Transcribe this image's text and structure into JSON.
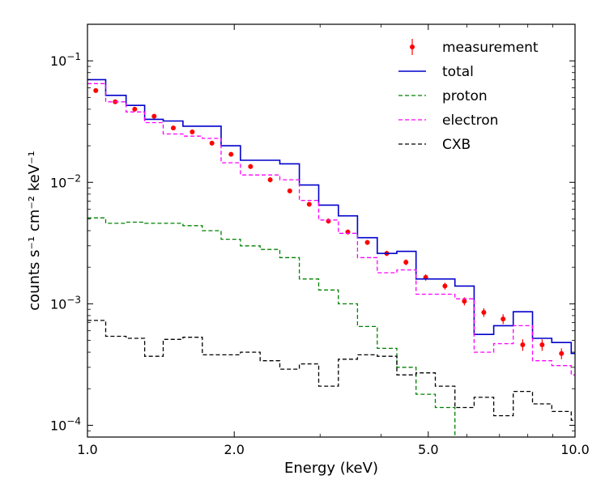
{
  "chart_data": {
    "type": "line",
    "xlabel": "Energy (keV)",
    "ylabel": "counts s⁻¹ cm⁻² keV⁻¹",
    "xscale": "log",
    "yscale": "log",
    "xlim": [
      1.0,
      10.0
    ],
    "ylim": [
      8e-05,
      0.2
    ],
    "x_ticks": [
      {
        "value": 1.0,
        "label": "1.0"
      },
      {
        "value": 2.0,
        "label": "2.0"
      },
      {
        "value": 5.0,
        "label": "5.0"
      },
      {
        "value": 10.0,
        "label": "10.0"
      }
    ],
    "y_ticks": [
      {
        "value": 0.1,
        "base": "10",
        "exp": "−1"
      },
      {
        "value": 0.01,
        "base": "10",
        "exp": "−2"
      },
      {
        "value": 0.001,
        "base": "10",
        "exp": "−3"
      },
      {
        "value": 0.0001,
        "base": "10",
        "exp": "−4"
      }
    ],
    "legend_position": "top-right",
    "series": [
      {
        "name": "measurement",
        "style": "errorbar",
        "color": "#ff0000",
        "x": [
          1.04,
          1.14,
          1.25,
          1.37,
          1.5,
          1.64,
          1.8,
          1.97,
          2.16,
          2.37,
          2.6,
          2.85,
          3.12,
          3.42,
          3.75,
          4.11,
          4.5,
          4.94,
          5.41,
          5.93,
          6.5,
          7.12,
          7.81,
          8.56,
          9.38
        ],
        "y": [
          0.057,
          0.046,
          0.04,
          0.035,
          0.028,
          0.026,
          0.021,
          0.017,
          0.0135,
          0.0105,
          0.0085,
          0.0066,
          0.0048,
          0.0039,
          0.0032,
          0.0026,
          0.0022,
          0.00165,
          0.0014,
          0.00105,
          0.00085,
          0.00075,
          0.00046,
          0.00046,
          0.00039
        ],
        "yerr": [
          0.0025,
          0.002,
          0.0018,
          0.0015,
          0.0012,
          0.0011,
          0.0009,
          0.0007,
          0.0006,
          0.0005,
          0.0004,
          0.0003,
          0.00022,
          0.00018,
          0.00015,
          0.00013,
          0.00012,
          0.0001,
          9e-05,
          8e-05,
          7e-05,
          7e-05,
          5e-05,
          5e-05,
          4e-05
        ]
      },
      {
        "name": "total",
        "style": "steps-solid",
        "color": "#0000cc",
        "edges": [
          1.0,
          1.09,
          1.2,
          1.31,
          1.43,
          1.57,
          1.72,
          1.88,
          2.06,
          2.26,
          2.48,
          2.72,
          2.98,
          3.27,
          3.58,
          3.93,
          4.31,
          4.72,
          5.17,
          5.67,
          6.21,
          6.81,
          7.47,
          8.18,
          8.96,
          9.82,
          10.0
        ],
        "values": [
          0.07,
          0.052,
          0.043,
          0.033,
          0.032,
          0.029,
          0.029,
          0.02,
          0.0152,
          0.0152,
          0.0142,
          0.0095,
          0.0065,
          0.0053,
          0.0035,
          0.0026,
          0.0027,
          0.0016,
          0.0016,
          0.0014,
          0.00056,
          0.00066,
          0.00086,
          0.00052,
          0.00048,
          0.00039
        ]
      },
      {
        "name": "proton",
        "style": "steps-dashed",
        "color": "#008000",
        "edges": [
          1.0,
          1.09,
          1.2,
          1.31,
          1.43,
          1.57,
          1.72,
          1.88,
          2.06,
          2.26,
          2.48,
          2.72,
          2.98,
          3.27,
          3.58,
          3.93,
          4.31,
          4.72,
          5.17,
          5.67
        ],
        "values": [
          0.0051,
          0.0046,
          0.0047,
          0.0046,
          0.0046,
          0.0044,
          0.004,
          0.0034,
          0.003,
          0.0028,
          0.0024,
          0.0016,
          0.0013,
          0.001,
          0.00065,
          0.00043,
          0.0003,
          0.00018,
          0.00014,
          8e-05
        ]
      },
      {
        "name": "electron",
        "style": "steps-dashed",
        "color": "#ff00ff",
        "edges": [
          1.0,
          1.09,
          1.2,
          1.31,
          1.43,
          1.57,
          1.72,
          1.88,
          2.06,
          2.26,
          2.48,
          2.72,
          2.98,
          3.27,
          3.58,
          3.93,
          4.31,
          4.72,
          5.17,
          5.67,
          6.21,
          6.81,
          7.47,
          8.18,
          8.96,
          9.82,
          10.0
        ],
        "values": [
          0.065,
          0.046,
          0.038,
          0.031,
          0.025,
          0.024,
          0.023,
          0.0145,
          0.0115,
          0.0115,
          0.0105,
          0.0071,
          0.0049,
          0.0038,
          0.0024,
          0.0018,
          0.0019,
          0.0012,
          0.0012,
          0.0011,
          0.0004,
          0.00047,
          0.00066,
          0.00034,
          0.00031,
          0.00026
        ]
      },
      {
        "name": "CXB",
        "style": "steps-dashed",
        "color": "#000000",
        "edges": [
          1.0,
          1.09,
          1.2,
          1.31,
          1.43,
          1.57,
          1.72,
          1.88,
          2.06,
          2.26,
          2.48,
          2.72,
          2.98,
          3.27,
          3.58,
          3.93,
          4.31,
          4.72,
          5.17,
          5.67,
          6.21,
          6.81,
          7.47,
          8.18,
          8.96,
          9.82,
          10.0
        ],
        "values": [
          0.00073,
          0.00054,
          0.00052,
          0.00037,
          0.00051,
          0.00053,
          0.00038,
          0.00038,
          0.0004,
          0.00034,
          0.00029,
          0.00032,
          0.00021,
          0.00035,
          0.00038,
          0.00037,
          0.00026,
          0.00027,
          0.00021,
          0.00014,
          0.00017,
          0.00012,
          0.00019,
          0.00015,
          0.00013,
          0.00011
        ]
      }
    ]
  }
}
